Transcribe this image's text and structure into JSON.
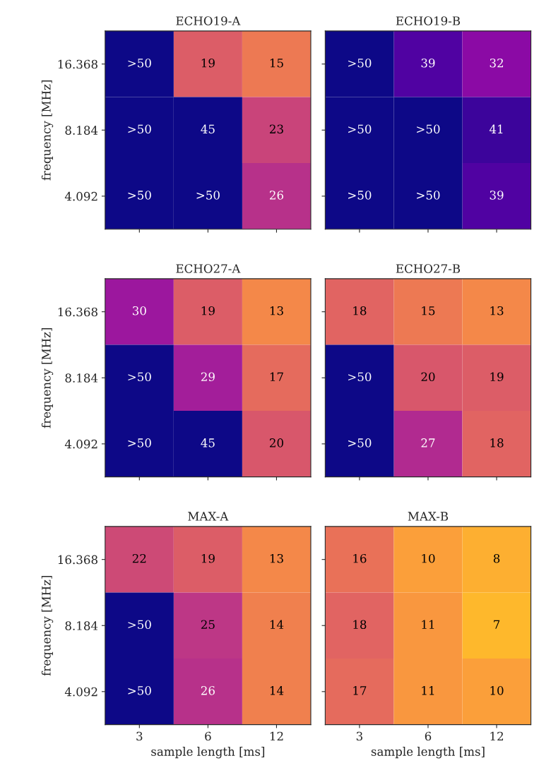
{
  "chart_data": [
    {
      "type": "heatmap",
      "title": "ECHO19-A",
      "ylabel": "frequency [MHz]",
      "tick_labels": "y",
      "categories": [
        "3",
        "6",
        "12"
      ],
      "y_categories": [
        "16.368",
        "8.184",
        "4.092"
      ],
      "cells": [
        [
          null,
          19,
          15
        ],
        [
          null,
          45,
          23
        ],
        [
          null,
          null,
          26
        ]
      ],
      "cell_labels": [
        [
          ">50",
          "19",
          "15"
        ],
        [
          ">50",
          "45",
          "23"
        ],
        [
          ">50",
          ">50",
          "26"
        ]
      ]
    },
    {
      "type": "heatmap",
      "title": "ECHO19-B",
      "tick_labels": false,
      "categories": [
        "3",
        "6",
        "12"
      ],
      "y_categories": [
        "16.368",
        "8.184",
        "4.092"
      ],
      "cells": [
        [
          null,
          39,
          32
        ],
        [
          null,
          null,
          41
        ],
        [
          null,
          null,
          39
        ]
      ],
      "cell_labels": [
        [
          ">50",
          "39",
          "32"
        ],
        [
          ">50",
          ">50",
          "41"
        ],
        [
          ">50",
          ">50",
          "39"
        ]
      ]
    },
    {
      "type": "heatmap",
      "title": "ECHO27-A",
      "ylabel": "frequency [MHz]",
      "tick_labels": "y",
      "categories": [
        "3",
        "6",
        "12"
      ],
      "y_categories": [
        "16.368",
        "8.184",
        "4.092"
      ],
      "cells": [
        [
          30,
          19,
          13
        ],
        [
          null,
          29,
          17
        ],
        [
          null,
          45,
          20
        ]
      ],
      "cell_labels": [
        [
          "30",
          "19",
          "13"
        ],
        [
          ">50",
          "29",
          "17"
        ],
        [
          ">50",
          "45",
          "20"
        ]
      ]
    },
    {
      "type": "heatmap",
      "title": "ECHO27-B",
      "tick_labels": false,
      "categories": [
        "3",
        "6",
        "12"
      ],
      "y_categories": [
        "16.368",
        "8.184",
        "4.092"
      ],
      "cells": [
        [
          18,
          15,
          13
        ],
        [
          null,
          20,
          19
        ],
        [
          null,
          27,
          18
        ]
      ],
      "cell_labels": [
        [
          "18",
          "15",
          "13"
        ],
        [
          ">50",
          "20",
          "19"
        ],
        [
          ">50",
          "27",
          "18"
        ]
      ]
    },
    {
      "type": "heatmap",
      "title": "MAX-A",
      "xlabel": "sample length [ms]",
      "ylabel": "frequency [MHz]",
      "categories": [
        "3",
        "6",
        "12"
      ],
      "y_categories": [
        "16.368",
        "8.184",
        "4.092"
      ],
      "cells": [
        [
          22,
          19,
          13
        ],
        [
          null,
          25,
          14
        ],
        [
          null,
          26,
          14
        ]
      ],
      "cell_labels": [
        [
          "22",
          "19",
          "13"
        ],
        [
          ">50",
          "25",
          "14"
        ],
        [
          ">50",
          "26",
          "14"
        ]
      ]
    },
    {
      "type": "heatmap",
      "title": "MAX-B",
      "xlabel": "sample length [ms]",
      "tick_labels": "x",
      "categories": [
        "3",
        "6",
        "12"
      ],
      "y_categories": [
        "16.368",
        "8.184",
        "4.092"
      ],
      "cells": [
        [
          16,
          10,
          8
        ],
        [
          18,
          11,
          7
        ],
        [
          17,
          11,
          10
        ]
      ],
      "cell_labels": [
        [
          "16",
          "10",
          "8"
        ],
        [
          "18",
          "11",
          "7"
        ],
        [
          "17",
          "11",
          "10"
        ]
      ]
    }
  ]
}
